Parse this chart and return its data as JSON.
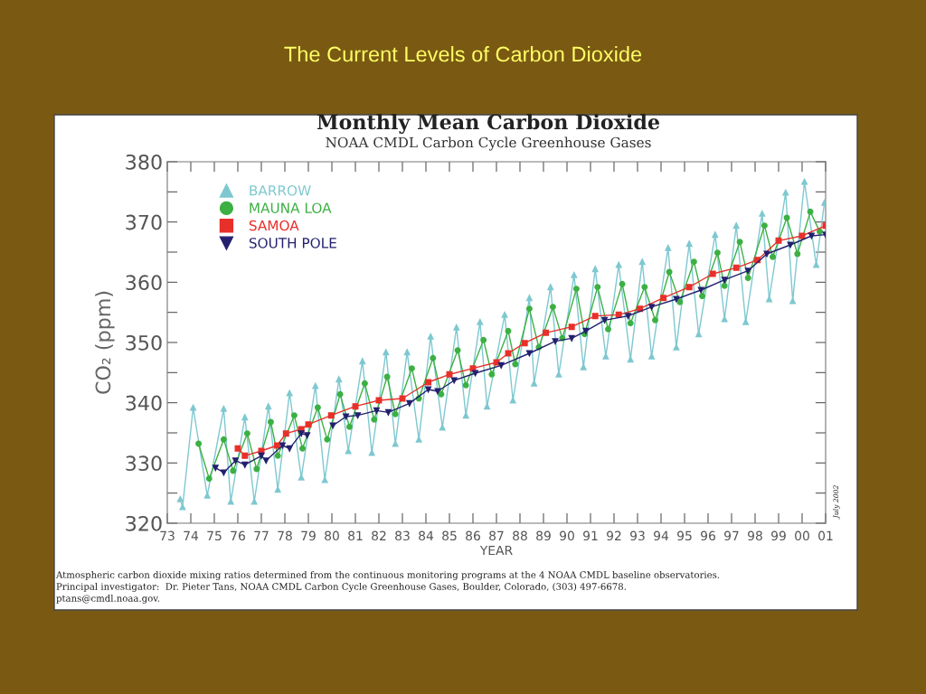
{
  "chart_data": {
    "type": "line",
    "title": "The Current Levels of Carbon Dioxide",
    "subtitle": "Monthly Mean Carbon Dioxide",
    "xlabel": "YEAR",
    "ylabel": "CO₂ (ppm)",
    "annotations": [
      "NOAA CMDL Carbon Cycle Greenhouse Gases",
      "July 2002",
      "Atmospheric carbon dioxide mixing ratios determined from the continuous monitoring programs at the 4 NOAA CMDL baseline observatories.",
      "Principal investigator:  Dr. Pieter Tans, NOAA CMDL Carbon Cycle Greenhouse Gases, Boulder, Colorado, (303) 497-6678.",
      "ptans@cmdl.noaa.gov."
    ],
    "xlim": [
      1973,
      2001
    ],
    "xticks": [
      {
        "value": 1973,
        "label": "73"
      },
      {
        "value": 1974,
        "label": "74"
      },
      {
        "value": 1975,
        "label": "75"
      },
      {
        "value": 1976,
        "label": "76"
      },
      {
        "value": 1977,
        "label": "77"
      },
      {
        "value": 1978,
        "label": "78"
      },
      {
        "value": 1979,
        "label": "79"
      },
      {
        "value": 1980,
        "label": "80"
      },
      {
        "value": 1981,
        "label": "81"
      },
      {
        "value": 1982,
        "label": "82"
      },
      {
        "value": 1983,
        "label": "83"
      },
      {
        "value": 1984,
        "label": "84"
      },
      {
        "value": 1985,
        "label": "85"
      },
      {
        "value": 1986,
        "label": "86"
      },
      {
        "value": 1987,
        "label": "87"
      },
      {
        "value": 1988,
        "label": "88"
      },
      {
        "value": 1989,
        "label": "89"
      },
      {
        "value": 1990,
        "label": "90"
      },
      {
        "value": 1991,
        "label": "91"
      },
      {
        "value": 1992,
        "label": "92"
      },
      {
        "value": 1993,
        "label": "93"
      },
      {
        "value": 1994,
        "label": "94"
      },
      {
        "value": 1995,
        "label": "95"
      },
      {
        "value": 1996,
        "label": "96"
      },
      {
        "value": 1997,
        "label": "97"
      },
      {
        "value": 1998,
        "label": "98"
      },
      {
        "value": 1999,
        "label": "99"
      },
      {
        "value": 2000,
        "label": "00"
      },
      {
        "value": 2001,
        "label": "01"
      }
    ],
    "ylim": [
      320,
      380
    ],
    "yticks": [
      320,
      {
        "value": 325,
        "label": null
      },
      330,
      {
        "value": 335,
        "label": null
      },
      340,
      {
        "value": 345,
        "label": null
      },
      350,
      {
        "value": 355,
        "label": null
      },
      360,
      {
        "value": 365,
        "label": null
      },
      370,
      {
        "value": 375,
        "label": null
      },
      380
    ],
    "grid": false,
    "legend": "top left",
    "series": [
      {
        "name": "BARROW",
        "color": "#7ec8d0",
        "marker": "triangle",
        "x": [
          1973.55,
          1973.65,
          1974.1,
          1974.7,
          1975.4,
          1975.7,
          1976.3,
          1976.7,
          1977.3,
          1977.7,
          1978.2,
          1978.7,
          1979.3,
          1979.7,
          1980.3,
          1980.7,
          1981.3,
          1981.7,
          1982.3,
          1982.7,
          1983.2,
          1983.7,
          1984.2,
          1984.7,
          1985.3,
          1985.7,
          1986.3,
          1986.6,
          1987.35,
          1987.7,
          1988.4,
          1988.6,
          1989.3,
          1989.65,
          1990.3,
          1990.7,
          1991.2,
          1991.65,
          1992.2,
          1992.7,
          1993.2,
          1993.6,
          1994.3,
          1994.65,
          1995.2,
          1995.6,
          1996.3,
          1996.7,
          1997.2,
          1997.6,
          1998.3,
          1998.6,
          1999.3,
          1999.6,
          2000.1,
          2000.6,
          2000.95
        ],
        "values": [
          324.0,
          322.7,
          339.2,
          324.6,
          339.0,
          323.6,
          337.6,
          323.6,
          339.4,
          325.6,
          341.6,
          327.6,
          342.8,
          327.2,
          343.9,
          332.0,
          346.9,
          331.7,
          348.4,
          333.2,
          348.4,
          333.9,
          351.0,
          335.9,
          352.5,
          337.9,
          353.4,
          339.4,
          354.6,
          340.4,
          357.4,
          343.2,
          359.2,
          344.7,
          361.2,
          345.9,
          362.2,
          347.7,
          362.9,
          347.2,
          363.4,
          347.7,
          365.7,
          349.2,
          366.4,
          351.4,
          367.9,
          353.9,
          369.4,
          353.4,
          371.4,
          357.2,
          374.9,
          356.9,
          376.7,
          362.9,
          373.2
        ]
      },
      {
        "name": "MAUNA LOA",
        "color": "#3cb043",
        "marker": "circle",
        "x": [
          1974.33,
          1974.78,
          1975.4,
          1975.8,
          1976.4,
          1976.8,
          1977.4,
          1977.7,
          1978.4,
          1978.75,
          1979.4,
          1979.8,
          1980.35,
          1980.75,
          1981.4,
          1981.8,
          1982.35,
          1982.7,
          1983.4,
          1983.7,
          1984.3,
          1984.65,
          1985.35,
          1985.7,
          1986.45,
          1986.8,
          1987.5,
          1987.8,
          1988.4,
          1988.8,
          1989.4,
          1989.8,
          1990.4,
          1990.75,
          1991.3,
          1991.75,
          1992.35,
          1992.7,
          1993.3,
          1993.75,
          1994.35,
          1994.8,
          1995.4,
          1995.75,
          1996.4,
          1996.7,
          1997.35,
          1997.7,
          1998.4,
          1998.75,
          1999.35,
          1999.8,
          2000.35,
          2000.75
        ],
        "values": [
          333.2,
          327.4,
          333.9,
          328.7,
          334.9,
          329.0,
          336.8,
          331.2,
          337.9,
          332.4,
          339.2,
          333.9,
          341.4,
          336.0,
          343.2,
          337.2,
          344.3,
          338.1,
          345.7,
          340.7,
          347.4,
          341.4,
          348.7,
          342.9,
          350.4,
          344.7,
          351.9,
          346.4,
          355.6,
          349.2,
          355.9,
          350.7,
          358.9,
          351.4,
          359.2,
          352.2,
          359.7,
          353.2,
          359.2,
          353.7,
          361.7,
          356.7,
          363.4,
          357.7,
          364.9,
          359.4,
          366.7,
          360.7,
          369.4,
          364.2,
          370.7,
          364.7,
          371.7,
          368.4
        ]
      },
      {
        "name": "SAMOA",
        "color": "#e8302a",
        "marker": "square",
        "x": [
          1976.0,
          1976.3,
          1977.0,
          1977.67,
          1978.05,
          1978.7,
          1979.0,
          1979.97,
          1981.0,
          1982.0,
          1983.0,
          1984.1,
          1985.0,
          1986.0,
          1987.0,
          1987.5,
          1988.2,
          1989.1,
          1990.2,
          1991.2,
          1992.2,
          1993.1,
          1994.1,
          1995.2,
          1996.2,
          1997.2,
          1998.1,
          1999.0,
          2000.0,
          2001.0
        ],
        "values": [
          332.4,
          331.2,
          332.0,
          332.9,
          334.9,
          335.6,
          336.4,
          337.9,
          339.4,
          340.4,
          340.7,
          343.4,
          344.7,
          345.7,
          346.7,
          348.2,
          349.9,
          351.6,
          352.6,
          354.4,
          354.6,
          355.6,
          357.4,
          359.2,
          361.4,
          362.4,
          363.7,
          366.9,
          367.7,
          369.4
        ]
      },
      {
        "name": "SOUTH POLE",
        "color": "#23206e",
        "marker": "triangle_down",
        "x": [
          1975.05,
          1975.4,
          1975.9,
          1976.3,
          1977.0,
          1977.2,
          1977.9,
          1978.2,
          1978.7,
          1978.95,
          1979.5,
          1980.04,
          1980.6,
          1981.1,
          1981.9,
          1982.4,
          1983.3,
          1984.1,
          1984.5,
          1985.2,
          1986.1,
          1987.2,
          1988.4,
          1989.5,
          1990.2,
          1990.8,
          1991.6,
          1992.6,
          1993.6,
          1994.65,
          1995.7,
          1996.7,
          1997.7,
          1998.5,
          1999.5,
          2000.4,
          2001.0
        ],
        "values": [
          329.2,
          328.4,
          330.4,
          329.7,
          331.2,
          330.4,
          332.9,
          332.4,
          334.9,
          334.6,
          null,
          336.2,
          337.7,
          337.9,
          338.7,
          338.4,
          339.9,
          342.2,
          341.9,
          343.7,
          344.9,
          346.2,
          348.2,
          350.2,
          350.7,
          351.9,
          353.7,
          354.4,
          355.9,
          357.2,
          358.7,
          360.4,
          361.9,
          364.7,
          366.2,
          367.7,
          367.9
        ]
      }
    ]
  }
}
